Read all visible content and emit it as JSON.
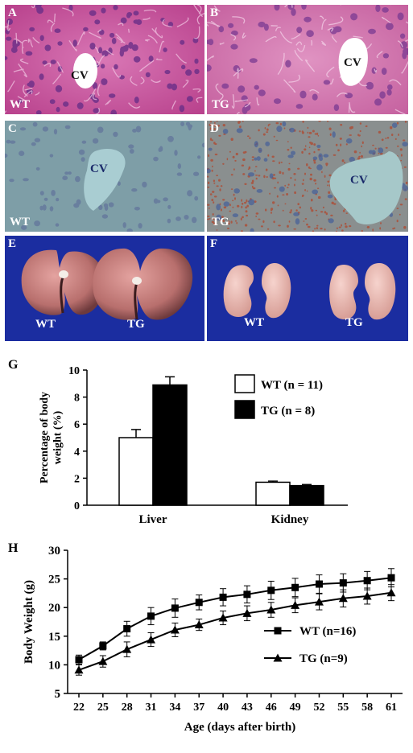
{
  "panels": {
    "A": {
      "letter": "A",
      "group": "WT",
      "vessel": "CV"
    },
    "B": {
      "letter": "B",
      "group": "TG",
      "vessel": "CV"
    },
    "C": {
      "letter": "C",
      "group": "WT",
      "vessel": "CV"
    },
    "D": {
      "letter": "D",
      "group": "TG",
      "vessel": "CV"
    },
    "E": {
      "letter": "E",
      "wt": "WT",
      "tg": "TG"
    },
    "F": {
      "letter": "F",
      "wt": "WT",
      "tg": "TG"
    }
  },
  "chart_data": [
    {
      "panel": "G",
      "type": "bar",
      "categories": [
        "Liver",
        "Kidney"
      ],
      "ylabel": "Percentage of body weight (%)",
      "ylabel_lines": [
        "Percentage of body",
        "weight (%)"
      ],
      "ylim": [
        0,
        10
      ],
      "yticks": [
        0,
        2,
        4,
        6,
        8,
        10
      ],
      "legend_position": "top-right",
      "series": [
        {
          "name": "WT (n = 11)",
          "values": [
            5.0,
            1.7
          ],
          "errors": [
            0.6,
            0.08
          ],
          "color": "#ffffff"
        },
        {
          "name": "TG (n = 8)",
          "values": [
            8.9,
            1.45
          ],
          "errors": [
            0.6,
            0.08
          ],
          "color": "#000000"
        }
      ]
    },
    {
      "panel": "H",
      "type": "line",
      "xlabel": "Age (days after birth)",
      "ylabel": "Body Weight (g)",
      "x": [
        22,
        25,
        28,
        31,
        34,
        37,
        40,
        43,
        46,
        49,
        52,
        55,
        58,
        61
      ],
      "ylim": [
        5,
        30
      ],
      "yticks": [
        5,
        10,
        15,
        20,
        25,
        30
      ],
      "legend_position": "lower-right",
      "series": [
        {
          "name": "WT (n=16)",
          "marker": "square",
          "values": [
            10.9,
            13.3,
            16.3,
            18.5,
            19.9,
            20.9,
            21.8,
            22.3,
            23.0,
            23.5,
            24.1,
            24.3,
            24.7,
            25.2
          ],
          "errors": [
            0.8,
            0.7,
            1.3,
            1.5,
            1.6,
            1.3,
            1.5,
            1.5,
            1.6,
            1.6,
            1.6,
            1.6,
            1.6,
            1.6
          ]
        },
        {
          "name": "TG (n=9)",
          "marker": "triangle",
          "values": [
            9.1,
            10.6,
            12.7,
            14.4,
            16.1,
            17.0,
            18.2,
            19.0,
            19.6,
            20.4,
            21.0,
            21.6,
            22.0,
            22.6
          ],
          "errors": [
            0.9,
            1.0,
            1.3,
            1.2,
            1.2,
            1.0,
            1.2,
            1.3,
            1.3,
            1.3,
            1.4,
            1.5,
            1.4,
            1.4
          ]
        }
      ]
    }
  ],
  "colors": {
    "he_stain": "#c8559a",
    "oil_red": "#7b9aa2",
    "photo_bg": "#1b2da0"
  }
}
